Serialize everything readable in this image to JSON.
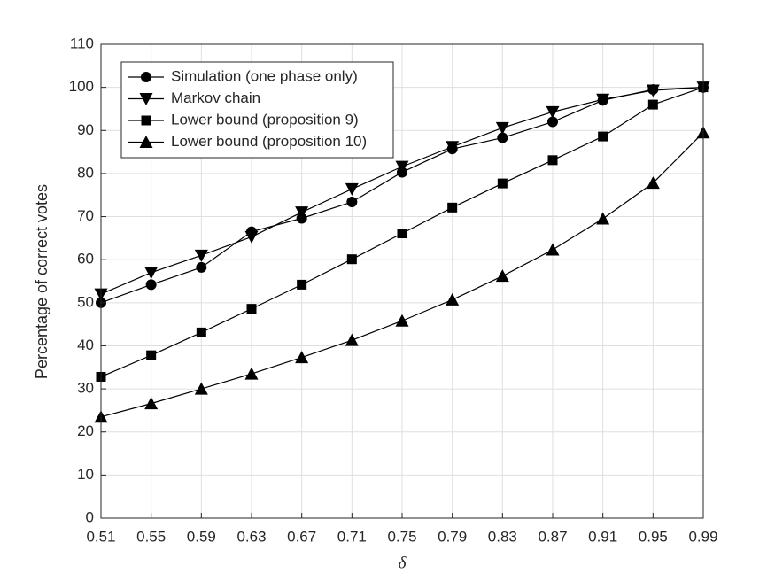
{
  "chart_data": {
    "type": "line",
    "xlabel": "δ",
    "ylabel": "Percentage of correct votes",
    "x": [
      0.51,
      0.55,
      0.59,
      0.63,
      0.67,
      0.71,
      0.75,
      0.79,
      0.83,
      0.87,
      0.91,
      0.95,
      0.99
    ],
    "xlim": [
      0.51,
      0.99
    ],
    "xticks": [
      0.51,
      0.55,
      0.59,
      0.63,
      0.67,
      0.71,
      0.75,
      0.79,
      0.83,
      0.87,
      0.91,
      0.95,
      0.99
    ],
    "ylim": [
      0,
      110
    ],
    "yticks": [
      0,
      10,
      20,
      30,
      40,
      50,
      60,
      70,
      80,
      90,
      100,
      110
    ],
    "grid": true,
    "legend": "upper-left",
    "series": [
      {
        "name": "Simulation (one phase only)",
        "color": "#000000",
        "marker": "circle",
        "values": [
          50,
          54.2,
          58.2,
          66.5,
          69.6,
          73.4,
          80.3,
          85.7,
          88.3,
          92,
          97,
          99.5,
          100
        ]
      },
      {
        "name": "Markov chain",
        "color": "#000000",
        "marker": "triangle-down",
        "values": [
          52,
          57,
          61,
          65.3,
          71,
          76.4,
          81.6,
          86.2,
          90.6,
          94.3,
          97.2,
          99.3,
          100
        ]
      },
      {
        "name": "Lower bound (proposition 9)",
        "color": "#000000",
        "marker": "square",
        "values": [
          32.8,
          37.8,
          43.1,
          48.6,
          54.2,
          60.1,
          66.1,
          72.1,
          77.7,
          83.1,
          88.6,
          96,
          100
        ]
      },
      {
        "name": "Lower bound (proposition 10)",
        "color": "#000000",
        "marker": "triangle-up",
        "values": [
          23.5,
          26.6,
          30,
          33.5,
          37.3,
          41.3,
          45.8,
          50.7,
          56.2,
          62.3,
          69.5,
          77.8,
          89.5
        ]
      }
    ]
  }
}
